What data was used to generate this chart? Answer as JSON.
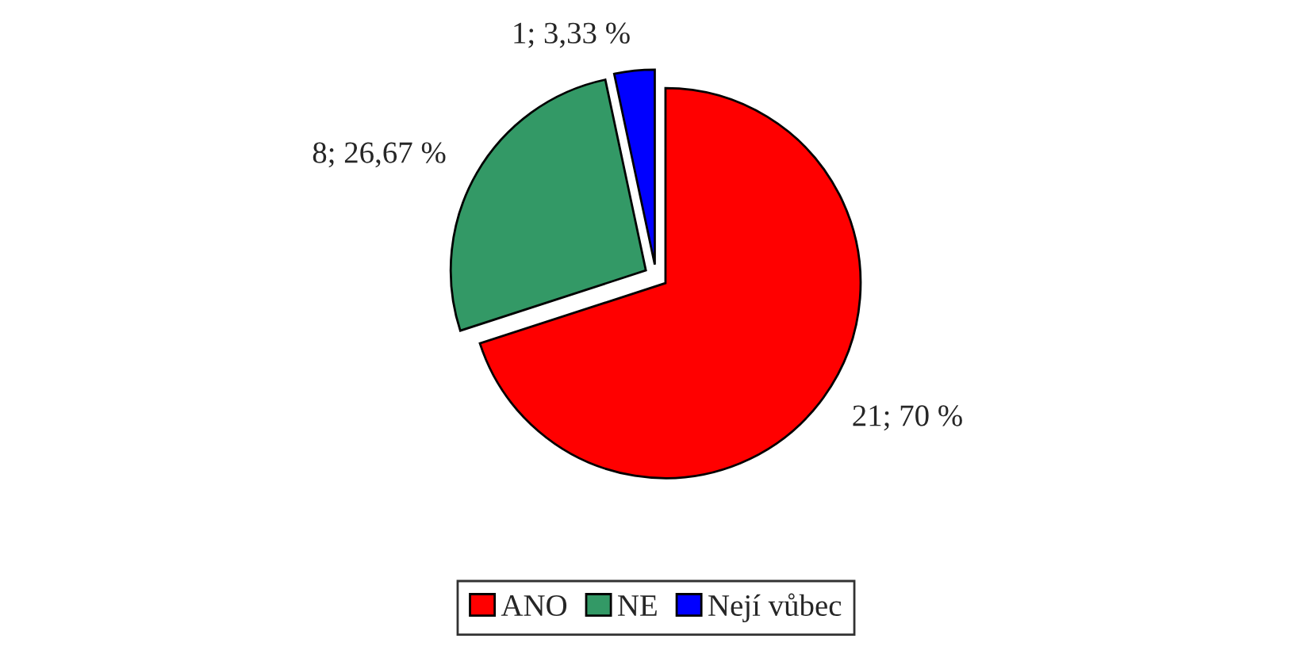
{
  "chart_data": {
    "type": "pie",
    "categories": [
      "ANO",
      "NE",
      "Nejí vůbec"
    ],
    "values": [
      21,
      8,
      1
    ],
    "value_labels": [
      "21; 70 %",
      "8; 26,67 %",
      "1; 3,33 %"
    ],
    "colors": [
      "#ff0000",
      "#339966",
      "#0000ff"
    ],
    "legend": "bottom"
  }
}
